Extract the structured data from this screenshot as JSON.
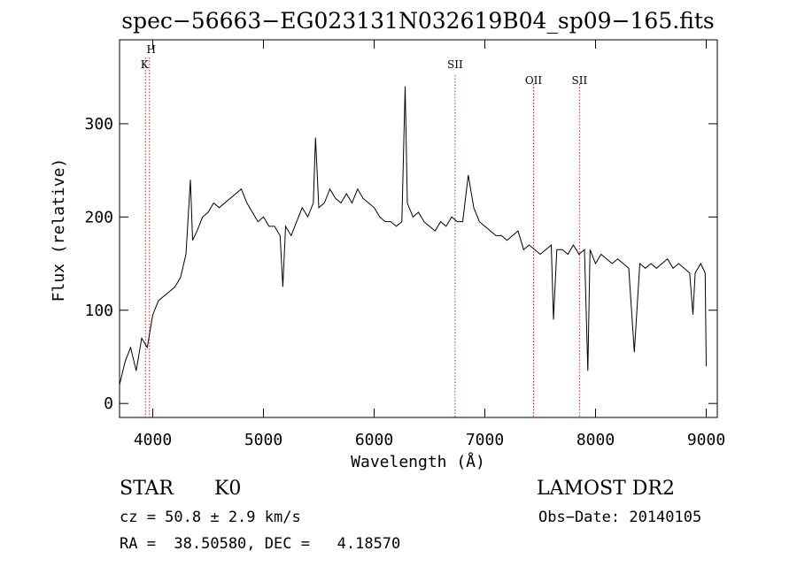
{
  "chart_data": {
    "type": "line",
    "title": "spec−56663−EG023131N032619B04_sp09−165.fits",
    "xlabel": "Wavelength (Å)",
    "ylabel": "Flux (relative)",
    "xlim": [
      3700,
      9100
    ],
    "ylim": [
      -15,
      390
    ],
    "xticks": [
      4000,
      5000,
      6000,
      7000,
      8000,
      9000
    ],
    "yticks": [
      0,
      100,
      200,
      300
    ],
    "grid": false,
    "series": [
      {
        "x": [
          3700,
          3750,
          3800,
          3850,
          3900,
          3950,
          4000,
          4050,
          4100,
          4150,
          4200,
          4250,
          4300,
          4340,
          4360,
          4400,
          4450,
          4500,
          4550,
          4600,
          4650,
          4700,
          4750,
          4800,
          4850,
          4900,
          4950,
          5000,
          5050,
          5100,
          5150,
          5175,
          5200,
          5250,
          5300,
          5350,
          5400,
          5450,
          5470,
          5500,
          5550,
          5600,
          5650,
          5700,
          5750,
          5800,
          5850,
          5900,
          5950,
          6000,
          6050,
          6100,
          6150,
          6200,
          6250,
          6280,
          6300,
          6350,
          6400,
          6450,
          6500,
          6550,
          6600,
          6650,
          6700,
          6750,
          6800,
          6850,
          6900,
          6950,
          7000,
          7050,
          7100,
          7150,
          7200,
          7250,
          7300,
          7350,
          7400,
          7450,
          7500,
          7550,
          7600,
          7620,
          7650,
          7700,
          7750,
          7800,
          7850,
          7900,
          7930,
          7950,
          8000,
          8050,
          8100,
          8150,
          8200,
          8250,
          8300,
          8350,
          8400,
          8450,
          8500,
          8550,
          8600,
          8650,
          8700,
          8750,
          8800,
          8850,
          8880,
          8900,
          8950,
          8990,
          9000
        ],
        "y": [
          20,
          45,
          60,
          35,
          70,
          60,
          95,
          110,
          115,
          120,
          125,
          135,
          160,
          240,
          175,
          185,
          200,
          205,
          215,
          210,
          215,
          220,
          225,
          230,
          215,
          205,
          195,
          200,
          190,
          190,
          180,
          125,
          190,
          180,
          195,
          210,
          200,
          215,
          285,
          210,
          215,
          230,
          220,
          215,
          225,
          215,
          230,
          220,
          215,
          210,
          200,
          195,
          195,
          190,
          195,
          340,
          215,
          200,
          205,
          195,
          190,
          185,
          195,
          190,
          200,
          195,
          195,
          245,
          210,
          195,
          190,
          185,
          180,
          180,
          175,
          180,
          185,
          165,
          170,
          165,
          160,
          165,
          170,
          90,
          165,
          165,
          160,
          170,
          160,
          165,
          35,
          165,
          150,
          160,
          155,
          150,
          155,
          150,
          145,
          55,
          150,
          145,
          150,
          145,
          150,
          155,
          145,
          150,
          145,
          140,
          95,
          140,
          150,
          140,
          40
        ]
      }
    ],
    "line_markers": [
      {
        "label": "H",
        "x": 3970
      },
      {
        "label": "K",
        "x": 3934
      },
      {
        "label": "SII",
        "x": 6731
      },
      {
        "label": "OII",
        "x": 7440
      },
      {
        "label": "SII",
        "x": 7855
      }
    ]
  },
  "info": {
    "class": "STAR",
    "subclass": "K0",
    "survey": "LAMOST DR2",
    "cz": "cz = 50.8 ± 2.9 km/s",
    "obs_date": "Obs−Date: 20140105",
    "radec": "RA =  38.50580, DEC =   4.18570"
  }
}
